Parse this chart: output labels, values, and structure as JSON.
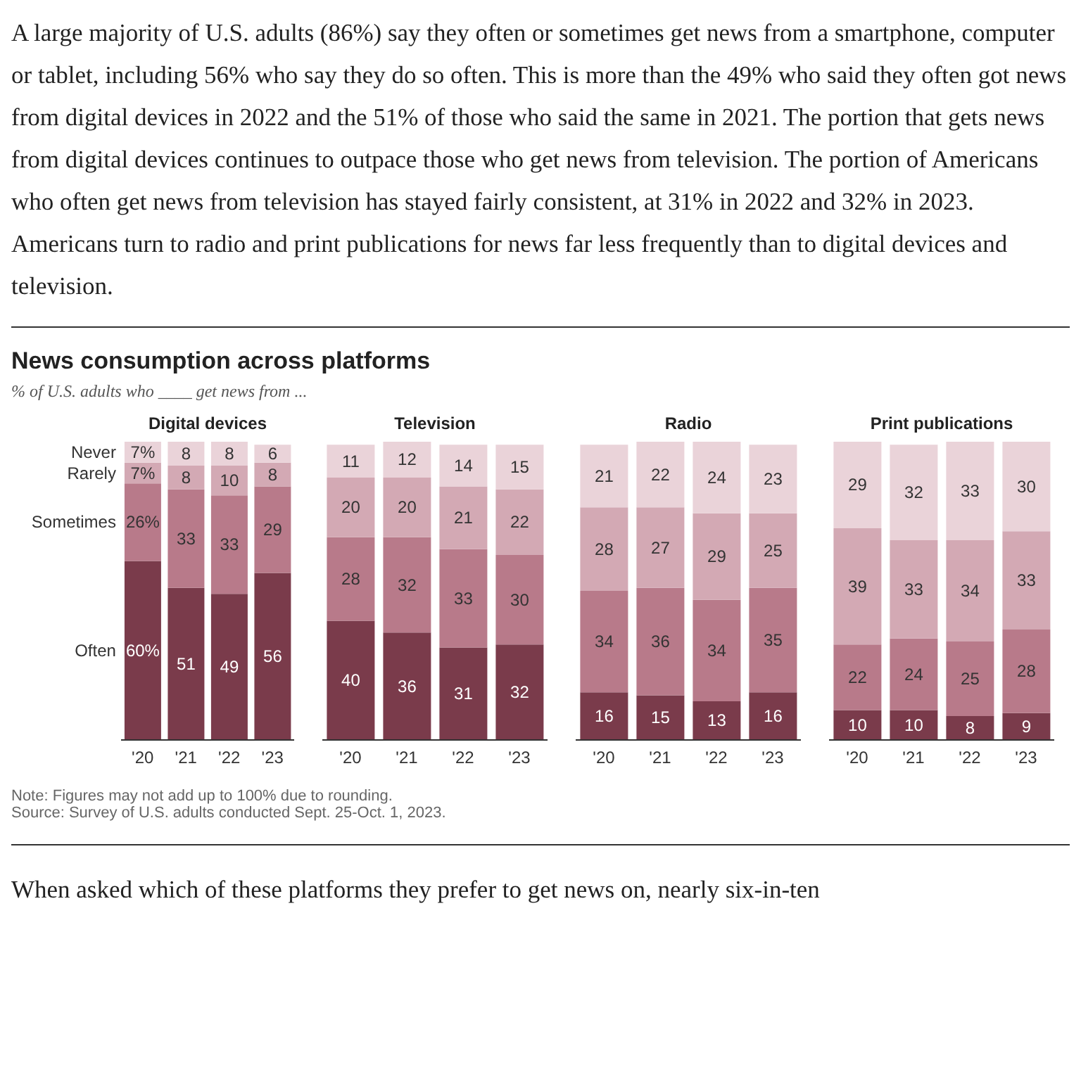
{
  "chart_data": [
    {
      "type": "other",
      "title": "News consumption across platforms",
      "subtitle": "% of U.S. adults who ____ get news from ...",
      "annotations": [
        "A large majority of U.S. adults (86%) say they often or sometimes get news from a smartphone, computer or tablet, including 56% who say they do so often. This is more than the 49% who said they often got news from digital devices in 2022 and the 51% of those who said the same in 2021. The portion that gets news from digital devices continues to outpace those who get news from television. The portion of Americans who often get news from television has stayed fairly consistent, at 31% in 2022 and 32% in 2023. Americans turn to radio and print publications for news far less frequently than to digital devices and television.",
        "Note: Figures may not add up to 100% due to rounding.",
        "Source: Survey of U.S. adults conducted Sept. 25-Oct. 1, 2023.",
        "When asked which of these platforms they prefer to get news on, nearly six-in-ten"
      ]
    },
    {
      "type": "bar",
      "title": "Digital devices",
      "stacked": true,
      "categories": [
        "'20",
        "'21",
        "'22",
        "'23"
      ],
      "series": [
        {
          "name": "Often",
          "color": "#7a3b4b",
          "values": [
            60,
            51,
            49,
            56
          ],
          "value_labels": [
            "60%",
            "51",
            "49",
            "56"
          ]
        },
        {
          "name": "Sometimes",
          "color": "#b87a8a",
          "values": [
            26,
            33,
            33,
            29
          ],
          "value_labels": [
            "26%",
            "33",
            "33",
            "29"
          ]
        },
        {
          "name": "Rarely",
          "color": "#d3a9b4",
          "values": [
            7,
            8,
            10,
            8
          ],
          "value_labels": [
            "7%",
            "8",
            "10",
            "8"
          ]
        },
        {
          "name": "Never",
          "color": "#ead3d9",
          "values": [
            7,
            8,
            8,
            6
          ],
          "value_labels": [
            "7%",
            "8",
            "8",
            "6"
          ]
        }
      ]
    },
    {
      "type": "bar",
      "title": "Television",
      "stacked": true,
      "data_labels": true,
      "categories": [
        "'20",
        "'21",
        "'22",
        "'23"
      ],
      "series": [
        {
          "color": "#7a3b4b",
          "values": [
            40,
            36,
            31,
            32
          ]
        },
        {
          "color": "#b87a8a",
          "values": [
            28,
            32,
            33,
            30
          ]
        },
        {
          "color": "#d3a9b4",
          "values": [
            20,
            20,
            21,
            22
          ]
        },
        {
          "color": "#ead3d9",
          "values": [
            11,
            12,
            14,
            15
          ]
        }
      ]
    },
    {
      "type": "bar",
      "title": "Radio",
      "stacked": true,
      "data_labels": true,
      "categories": [
        "'20",
        "'21",
        "'22",
        "'23"
      ],
      "series": [
        {
          "color": "#7a3b4b",
          "values": [
            16,
            15,
            13,
            16
          ]
        },
        {
          "color": "#b87a8a",
          "values": [
            34,
            36,
            34,
            35
          ]
        },
        {
          "color": "#d3a9b4",
          "values": [
            28,
            27,
            29,
            25
          ]
        },
        {
          "color": "#ead3d9",
          "values": [
            21,
            22,
            24,
            23
          ]
        }
      ]
    },
    {
      "type": "bar",
      "title": "Print publications",
      "stacked": true,
      "data_labels": true,
      "categories": [
        "'20",
        "'21",
        "'22",
        "'23"
      ],
      "series": [
        {
          "color": "#7a3b4b",
          "values": [
            10,
            10,
            8,
            9
          ]
        },
        {
          "color": "#b87a8a",
          "values": [
            22,
            24,
            25,
            28
          ]
        },
        {
          "color": "#d3a9b4",
          "values": [
            39,
            33,
            34,
            33
          ]
        },
        {
          "color": "#ead3d9",
          "values": [
            29,
            32,
            33,
            30
          ]
        }
      ]
    }
  ]
}
